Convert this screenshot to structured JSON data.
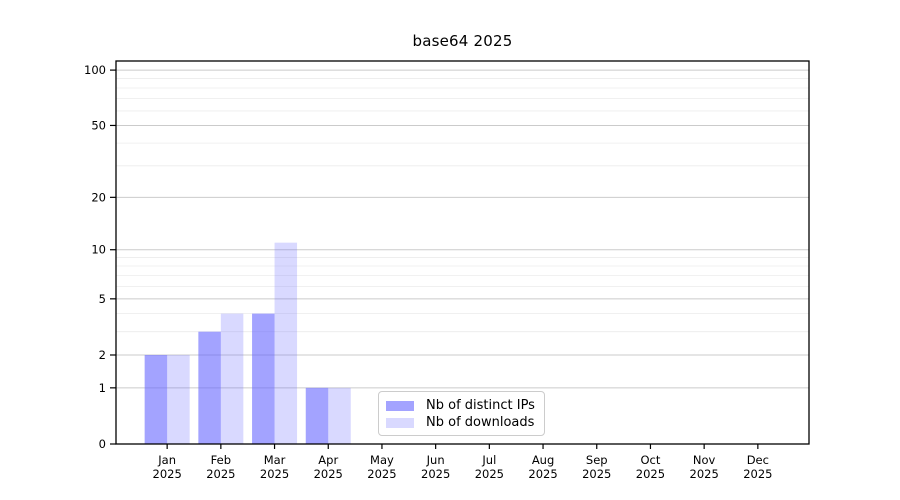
{
  "chart_data": {
    "type": "bar",
    "title": "base64 2025",
    "x_axis": {
      "months": [
        "Jan",
        "Feb",
        "Mar",
        "Apr",
        "May",
        "Jun",
        "Jul",
        "Aug",
        "Sep",
        "Oct",
        "Nov",
        "Dec"
      ],
      "year": "2025"
    },
    "y_axis": {
      "scale": "log1p",
      "ticks": [
        0,
        1,
        2,
        5,
        10,
        20,
        50,
        100
      ],
      "minor_gridlines": [
        3,
        4,
        6,
        7,
        8,
        9,
        30,
        40,
        60,
        70,
        80,
        90
      ],
      "max": 112
    },
    "series": [
      {
        "name": "Nb of distinct IPs",
        "color": "#6666ff",
        "opacity": 0.6,
        "values": [
          2,
          3,
          4,
          1,
          0,
          0,
          0,
          0,
          0,
          0,
          0,
          0
        ]
      },
      {
        "name": "Nb of downloads",
        "color": "#6666ff",
        "opacity": 0.25,
        "values": [
          2,
          4,
          11,
          1,
          0,
          0,
          0,
          0,
          0,
          0,
          0,
          0
        ]
      }
    ],
    "legend": {
      "position": "lower center"
    },
    "colors": {
      "grid_major": "#cbcbcb",
      "grid_minor": "#ececec",
      "spine": "#000000",
      "text": "#000000",
      "background": "#ffffff"
    }
  }
}
